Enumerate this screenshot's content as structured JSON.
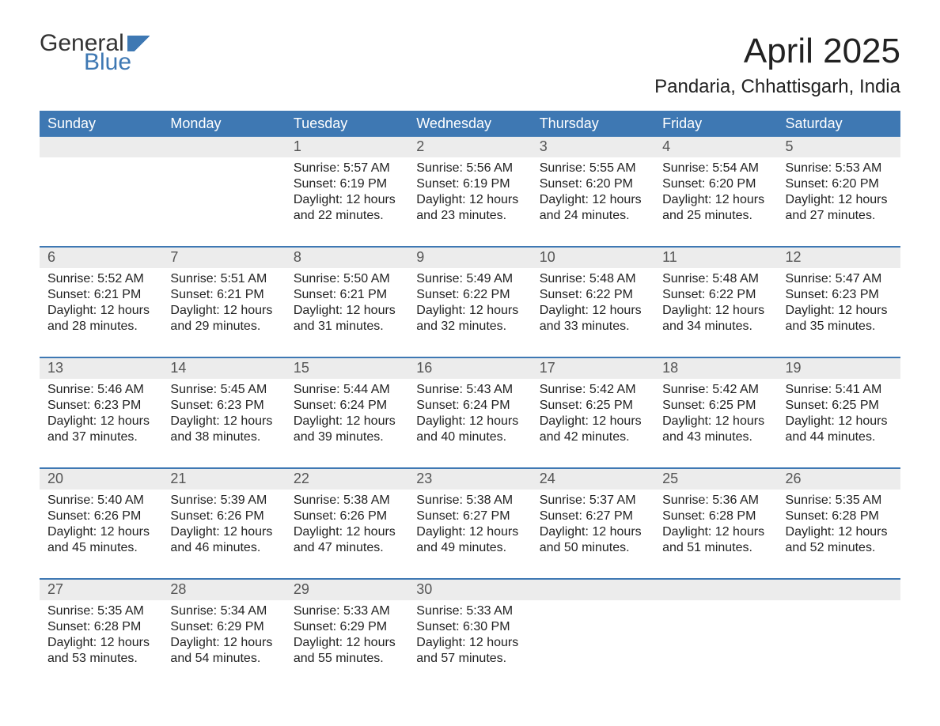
{
  "logo": {
    "text1": "General",
    "text2": "Blue"
  },
  "title": "April 2025",
  "location": "Pandaria, Chhattisgarh, India",
  "colors": {
    "header_bg": "#3e78b3",
    "header_fg": "#ffffff",
    "daynum_bg": "#ececec",
    "daynum_fg": "#555555",
    "text": "#222222",
    "logo_accent": "#3e78b3",
    "page_bg": "#ffffff"
  },
  "fonts": {
    "title_pt": 44,
    "location_pt": 24,
    "header_pt": 18,
    "daynum_pt": 18,
    "body_pt": 16
  },
  "weekdays": [
    "Sunday",
    "Monday",
    "Tuesday",
    "Wednesday",
    "Thursday",
    "Friday",
    "Saturday"
  ],
  "weeks": [
    [
      {
        "n": "",
        "sr": "",
        "ss": "",
        "d1": "",
        "d2": ""
      },
      {
        "n": "",
        "sr": "",
        "ss": "",
        "d1": "",
        "d2": ""
      },
      {
        "n": "1",
        "sr": "Sunrise: 5:57 AM",
        "ss": "Sunset: 6:19 PM",
        "d1": "Daylight: 12 hours",
        "d2": "and 22 minutes."
      },
      {
        "n": "2",
        "sr": "Sunrise: 5:56 AM",
        "ss": "Sunset: 6:19 PM",
        "d1": "Daylight: 12 hours",
        "d2": "and 23 minutes."
      },
      {
        "n": "3",
        "sr": "Sunrise: 5:55 AM",
        "ss": "Sunset: 6:20 PM",
        "d1": "Daylight: 12 hours",
        "d2": "and 24 minutes."
      },
      {
        "n": "4",
        "sr": "Sunrise: 5:54 AM",
        "ss": "Sunset: 6:20 PM",
        "d1": "Daylight: 12 hours",
        "d2": "and 25 minutes."
      },
      {
        "n": "5",
        "sr": "Sunrise: 5:53 AM",
        "ss": "Sunset: 6:20 PM",
        "d1": "Daylight: 12 hours",
        "d2": "and 27 minutes."
      }
    ],
    [
      {
        "n": "6",
        "sr": "Sunrise: 5:52 AM",
        "ss": "Sunset: 6:21 PM",
        "d1": "Daylight: 12 hours",
        "d2": "and 28 minutes."
      },
      {
        "n": "7",
        "sr": "Sunrise: 5:51 AM",
        "ss": "Sunset: 6:21 PM",
        "d1": "Daylight: 12 hours",
        "d2": "and 29 minutes."
      },
      {
        "n": "8",
        "sr": "Sunrise: 5:50 AM",
        "ss": "Sunset: 6:21 PM",
        "d1": "Daylight: 12 hours",
        "d2": "and 31 minutes."
      },
      {
        "n": "9",
        "sr": "Sunrise: 5:49 AM",
        "ss": "Sunset: 6:22 PM",
        "d1": "Daylight: 12 hours",
        "d2": "and 32 minutes."
      },
      {
        "n": "10",
        "sr": "Sunrise: 5:48 AM",
        "ss": "Sunset: 6:22 PM",
        "d1": "Daylight: 12 hours",
        "d2": "and 33 minutes."
      },
      {
        "n": "11",
        "sr": "Sunrise: 5:48 AM",
        "ss": "Sunset: 6:22 PM",
        "d1": "Daylight: 12 hours",
        "d2": "and 34 minutes."
      },
      {
        "n": "12",
        "sr": "Sunrise: 5:47 AM",
        "ss": "Sunset: 6:23 PM",
        "d1": "Daylight: 12 hours",
        "d2": "and 35 minutes."
      }
    ],
    [
      {
        "n": "13",
        "sr": "Sunrise: 5:46 AM",
        "ss": "Sunset: 6:23 PM",
        "d1": "Daylight: 12 hours",
        "d2": "and 37 minutes."
      },
      {
        "n": "14",
        "sr": "Sunrise: 5:45 AM",
        "ss": "Sunset: 6:23 PM",
        "d1": "Daylight: 12 hours",
        "d2": "and 38 minutes."
      },
      {
        "n": "15",
        "sr": "Sunrise: 5:44 AM",
        "ss": "Sunset: 6:24 PM",
        "d1": "Daylight: 12 hours",
        "d2": "and 39 minutes."
      },
      {
        "n": "16",
        "sr": "Sunrise: 5:43 AM",
        "ss": "Sunset: 6:24 PM",
        "d1": "Daylight: 12 hours",
        "d2": "and 40 minutes."
      },
      {
        "n": "17",
        "sr": "Sunrise: 5:42 AM",
        "ss": "Sunset: 6:25 PM",
        "d1": "Daylight: 12 hours",
        "d2": "and 42 minutes."
      },
      {
        "n": "18",
        "sr": "Sunrise: 5:42 AM",
        "ss": "Sunset: 6:25 PM",
        "d1": "Daylight: 12 hours",
        "d2": "and 43 minutes."
      },
      {
        "n": "19",
        "sr": "Sunrise: 5:41 AM",
        "ss": "Sunset: 6:25 PM",
        "d1": "Daylight: 12 hours",
        "d2": "and 44 minutes."
      }
    ],
    [
      {
        "n": "20",
        "sr": "Sunrise: 5:40 AM",
        "ss": "Sunset: 6:26 PM",
        "d1": "Daylight: 12 hours",
        "d2": "and 45 minutes."
      },
      {
        "n": "21",
        "sr": "Sunrise: 5:39 AM",
        "ss": "Sunset: 6:26 PM",
        "d1": "Daylight: 12 hours",
        "d2": "and 46 minutes."
      },
      {
        "n": "22",
        "sr": "Sunrise: 5:38 AM",
        "ss": "Sunset: 6:26 PM",
        "d1": "Daylight: 12 hours",
        "d2": "and 47 minutes."
      },
      {
        "n": "23",
        "sr": "Sunrise: 5:38 AM",
        "ss": "Sunset: 6:27 PM",
        "d1": "Daylight: 12 hours",
        "d2": "and 49 minutes."
      },
      {
        "n": "24",
        "sr": "Sunrise: 5:37 AM",
        "ss": "Sunset: 6:27 PM",
        "d1": "Daylight: 12 hours",
        "d2": "and 50 minutes."
      },
      {
        "n": "25",
        "sr": "Sunrise: 5:36 AM",
        "ss": "Sunset: 6:28 PM",
        "d1": "Daylight: 12 hours",
        "d2": "and 51 minutes."
      },
      {
        "n": "26",
        "sr": "Sunrise: 5:35 AM",
        "ss": "Sunset: 6:28 PM",
        "d1": "Daylight: 12 hours",
        "d2": "and 52 minutes."
      }
    ],
    [
      {
        "n": "27",
        "sr": "Sunrise: 5:35 AM",
        "ss": "Sunset: 6:28 PM",
        "d1": "Daylight: 12 hours",
        "d2": "and 53 minutes."
      },
      {
        "n": "28",
        "sr": "Sunrise: 5:34 AM",
        "ss": "Sunset: 6:29 PM",
        "d1": "Daylight: 12 hours",
        "d2": "and 54 minutes."
      },
      {
        "n": "29",
        "sr": "Sunrise: 5:33 AM",
        "ss": "Sunset: 6:29 PM",
        "d1": "Daylight: 12 hours",
        "d2": "and 55 minutes."
      },
      {
        "n": "30",
        "sr": "Sunrise: 5:33 AM",
        "ss": "Sunset: 6:30 PM",
        "d1": "Daylight: 12 hours",
        "d2": "and 57 minutes."
      },
      {
        "n": "",
        "sr": "",
        "ss": "",
        "d1": "",
        "d2": ""
      },
      {
        "n": "",
        "sr": "",
        "ss": "",
        "d1": "",
        "d2": ""
      },
      {
        "n": "",
        "sr": "",
        "ss": "",
        "d1": "",
        "d2": ""
      }
    ]
  ]
}
